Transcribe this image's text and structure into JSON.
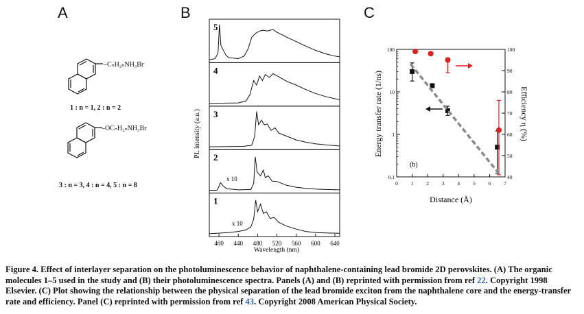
{
  "panels": {
    "a_label": "A",
    "b_label": "B",
    "c_label": "C"
  },
  "panel_a": {
    "mol1_substituent": "–CₙH₂ₙNH₃Br",
    "mol1_legend": "1 : n = 1,  2 : n = 2",
    "mol2_substituent": "–OCₙH₂ₙNH₃Br",
    "mol2_legend": "3 : n = 3,  4 : n = 4,  5 : n = 8"
  },
  "chart_data": [
    {
      "type": "line",
      "panel": "B",
      "ylabel": "PL intensity (a.u.)",
      "xlabel": "Wavelength (nm)",
      "x_ticks": [
        400,
        440,
        480,
        520,
        560,
        600,
        640
      ],
      "xlim": [
        380,
        650
      ],
      "stack_labels": [
        "5",
        "4",
        "3",
        "2",
        "1"
      ],
      "annotations": [
        "x 10",
        "x 10"
      ],
      "series": [
        {
          "name": "5",
          "points": [
            [
              380,
              0.02
            ],
            [
              392,
              0.05
            ],
            [
              398,
              0.2
            ],
            [
              401,
              0.95
            ],
            [
              404,
              0.4
            ],
            [
              408,
              0.3
            ],
            [
              414,
              0.15
            ],
            [
              420,
              0.08
            ],
            [
              440,
              0.05
            ],
            [
              452,
              0.12
            ],
            [
              460,
              0.3
            ],
            [
              468,
              0.62
            ],
            [
              476,
              0.72
            ],
            [
              484,
              0.78
            ],
            [
              492,
              0.8
            ],
            [
              500,
              0.78
            ],
            [
              512,
              0.82
            ],
            [
              520,
              0.75
            ],
            [
              540,
              0.62
            ],
            [
              560,
              0.5
            ],
            [
              580,
              0.38
            ],
            [
              600,
              0.27
            ],
            [
              620,
              0.18
            ],
            [
              640,
              0.12
            ],
            [
              650,
              0.1
            ]
          ]
        },
        {
          "name": "4",
          "points": [
            [
              380,
              0.02
            ],
            [
              440,
              0.03
            ],
            [
              456,
              0.08
            ],
            [
              464,
              0.25
            ],
            [
              472,
              0.62
            ],
            [
              478,
              0.5
            ],
            [
              484,
              0.74
            ],
            [
              490,
              0.62
            ],
            [
              496,
              0.78
            ],
            [
              504,
              0.7
            ],
            [
              512,
              0.8
            ],
            [
              524,
              0.72
            ],
            [
              540,
              0.6
            ],
            [
              560,
              0.5
            ],
            [
              580,
              0.38
            ],
            [
              600,
              0.28
            ],
            [
              620,
              0.2
            ],
            [
              640,
              0.14
            ],
            [
              650,
              0.12
            ]
          ]
        },
        {
          "name": "3",
          "points": [
            [
              380,
              0.02
            ],
            [
              450,
              0.03
            ],
            [
              468,
              0.06
            ],
            [
              474,
              0.3
            ],
            [
              478,
              0.95
            ],
            [
              482,
              0.6
            ],
            [
              488,
              0.72
            ],
            [
              494,
              0.6
            ],
            [
              500,
              0.62
            ],
            [
              508,
              0.45
            ],
            [
              516,
              0.52
            ],
            [
              524,
              0.38
            ],
            [
              540,
              0.3
            ],
            [
              560,
              0.2
            ],
            [
              580,
              0.14
            ],
            [
              600,
              0.1
            ],
            [
              620,
              0.07
            ],
            [
              640,
              0.05
            ],
            [
              650,
              0.04
            ]
          ]
        },
        {
          "name": "2",
          "points": [
            [
              380,
              0.02
            ],
            [
              396,
              0.02
            ],
            [
              400,
              0.12
            ],
            [
              403,
              0.22
            ],
            [
              408,
              0.14
            ],
            [
              416,
              0.06
            ],
            [
              440,
              0.03
            ],
            [
              466,
              0.04
            ],
            [
              472,
              0.2
            ],
            [
              475,
              0.9
            ],
            [
              479,
              0.5
            ],
            [
              486,
              0.4
            ],
            [
              492,
              0.55
            ],
            [
              496,
              0.35
            ],
            [
              502,
              0.4
            ],
            [
              510,
              0.26
            ],
            [
              520,
              0.25
            ],
            [
              540,
              0.15
            ],
            [
              560,
              0.1
            ],
            [
              580,
              0.07
            ],
            [
              600,
              0.05
            ],
            [
              620,
              0.04
            ],
            [
              650,
              0.03
            ]
          ]
        },
        {
          "name": "1",
          "points": [
            [
              380,
              0.02
            ],
            [
              420,
              0.05
            ],
            [
              440,
              0.08
            ],
            [
              456,
              0.12
            ],
            [
              466,
              0.2
            ],
            [
              472,
              0.4
            ],
            [
              476,
              0.9
            ],
            [
              480,
              0.6
            ],
            [
              486,
              0.8
            ],
            [
              492,
              0.55
            ],
            [
              498,
              0.6
            ],
            [
              506,
              0.42
            ],
            [
              514,
              0.45
            ],
            [
              524,
              0.32
            ],
            [
              540,
              0.22
            ],
            [
              560,
              0.14
            ],
            [
              580,
              0.08
            ],
            [
              600,
              0.05
            ],
            [
              620,
              0.04
            ],
            [
              650,
              0.03
            ]
          ]
        }
      ]
    },
    {
      "type": "scatter",
      "panel": "C",
      "subpanel_label": "(b)",
      "xlabel": "Distance (Å)",
      "ylabel": "Energy transfer rate (1/ns)",
      "y2label": "Efficiency η (%)",
      "xlim": [
        0,
        7
      ],
      "x_ticks": [
        "0",
        "1",
        "2",
        "3",
        "4",
        "5",
        "6",
        "7"
      ],
      "y_log": true,
      "ylim": [
        0.1,
        100
      ],
      "y_ticks": [
        "0.1",
        "1",
        "10",
        "100"
      ],
      "y2lim": [
        40,
        100
      ],
      "y2_ticks": [
        "40",
        "50",
        "60",
        "70",
        "80",
        "90",
        "100"
      ],
      "series": [
        {
          "name": "Energy transfer rate",
          "color": "#111111",
          "axis": "left",
          "x": [
            1.0,
            2.3,
            3.3,
            6.5
          ],
          "y": [
            30,
            14,
            3.6,
            0.5
          ],
          "err_low": [
            18,
            13,
            2.8,
            0.12
          ],
          "err_high": [
            48,
            15.5,
            4.6,
            1.2
          ]
        },
        {
          "name": "Efficiency",
          "color": "#e0201c",
          "axis": "right",
          "x": [
            1.2,
            2.2,
            3.3,
            6.6
          ],
          "y": [
            99,
            98,
            95,
            62
          ],
          "err_low": [
            98.5,
            97.5,
            89,
            41
          ],
          "err_high": [
            99.5,
            98.5,
            96,
            76
          ]
        },
        {
          "name": "Fit",
          "color": "#8a8a8a",
          "axis": "left",
          "style": "dashed",
          "x": [
            0.9,
            6.6
          ],
          "y": [
            45,
            0.12
          ]
        }
      ]
    }
  ],
  "caption": {
    "lead": "Figure 4. Effect of interlayer separation on the photoluminescence behavior of naphthalene-containing lead bromide 2D perovskites. (A) The organic molecules 1–5 used in the study and (B) their photoluminescence spectra. Panels (A) and (B) reprinted with permission from ref ",
    "ref1": "22",
    "mid": ". Copyright 1998 Elsevier. (C) Plot showing the relationship between the physical separation of the lead bromide exciton from the naphthalene core and the energy-transfer rate and efficiency. Panel (C) reprinted with permission from ref ",
    "ref2": "43",
    "tail": ". Copyright 2008 American Physical Society."
  }
}
